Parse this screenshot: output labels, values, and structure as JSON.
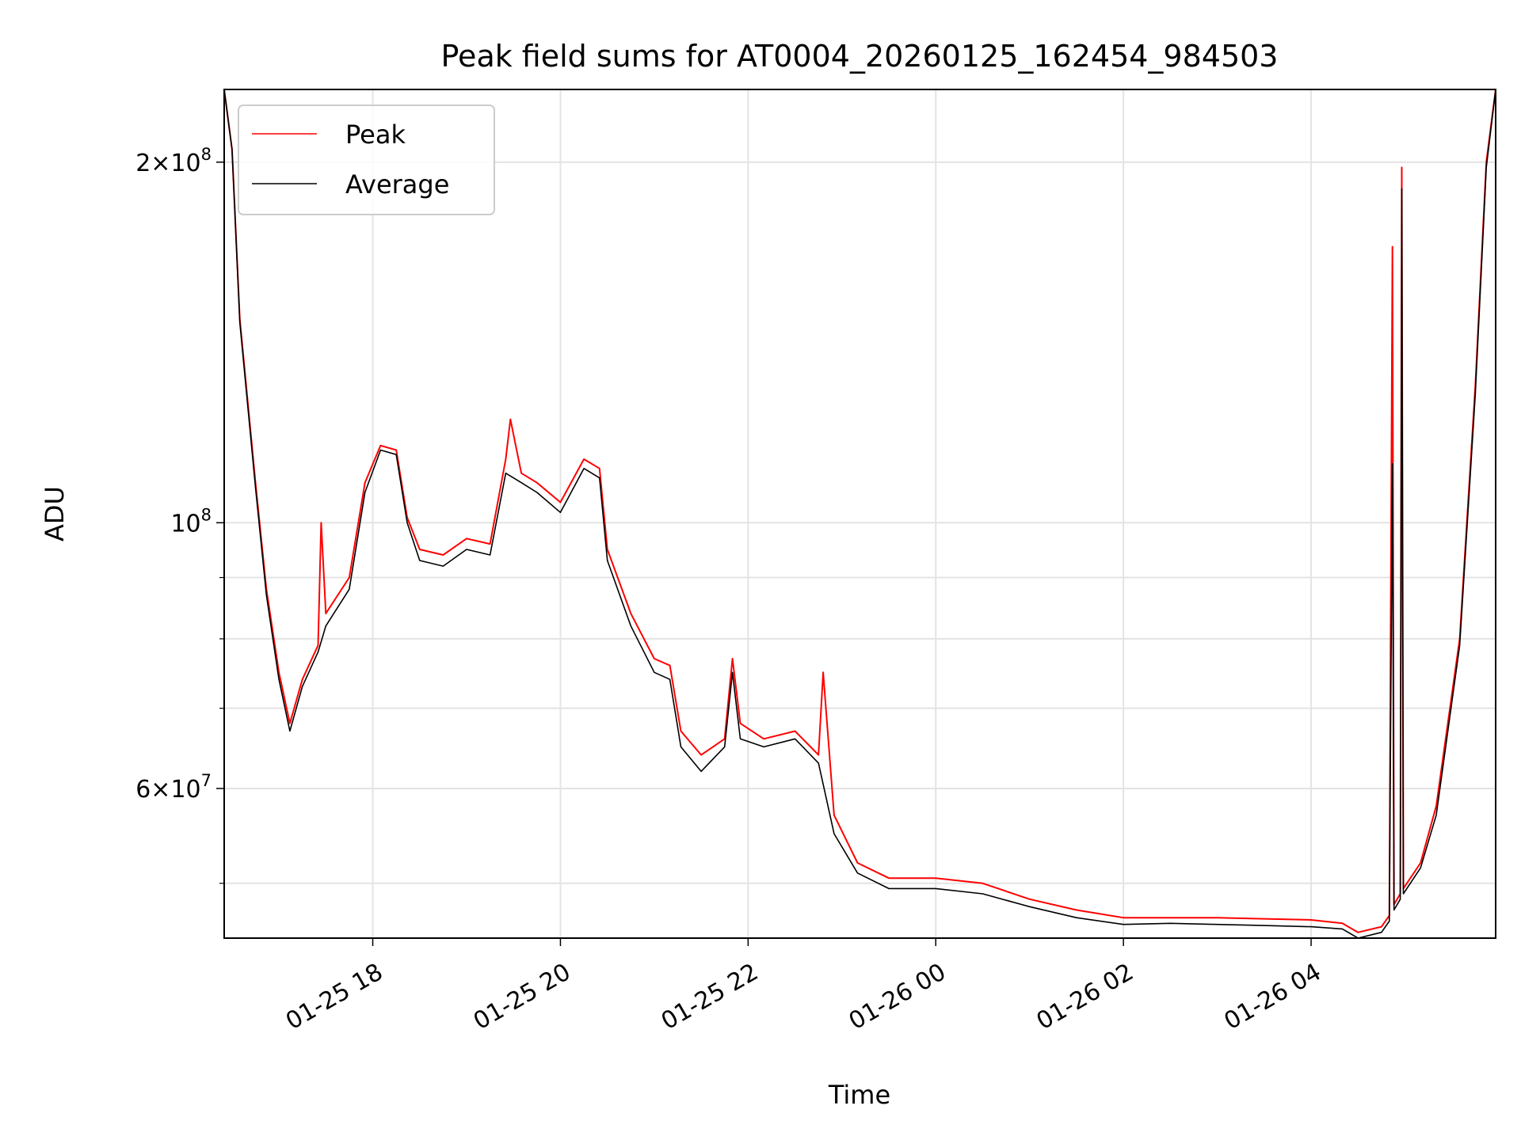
{
  "chart_data": {
    "type": "line",
    "title": "Peak field sums for AT0004_20260125_162454_984503",
    "xlabel": "Time",
    "ylabel": "ADU",
    "yscale": "log",
    "grid": true,
    "legend_position": "upper-left",
    "x_range": [
      "2026-01-25 16:25",
      "2026-01-26 05:58"
    ],
    "ylim": [
      45000000,
      230000000
    ],
    "x_ticks": [
      {
        "t": "2026-01-25 18:00",
        "label": "01-25 18"
      },
      {
        "t": "2026-01-25 20:00",
        "label": "01-25 20"
      },
      {
        "t": "2026-01-25 22:00",
        "label": "01-25 22"
      },
      {
        "t": "2026-01-26 00:00",
        "label": "01-26 00"
      },
      {
        "t": "2026-01-26 02:00",
        "label": "01-26 02"
      },
      {
        "t": "2026-01-26 04:00",
        "label": "01-26 04"
      }
    ],
    "y_major_ticks": [
      {
        "value": 60000000,
        "base": "6",
        "exp": "7",
        "times": true
      },
      {
        "value": 100000000,
        "base": "10",
        "exp": "8",
        "times": false
      },
      {
        "value": 200000000,
        "base": "2",
        "exp": "8",
        "times": true
      }
    ],
    "y_minor_ticks": [
      50000000,
      70000000,
      80000000,
      90000000
    ],
    "series": [
      {
        "name": "Peak",
        "color": "#ff0000",
        "points": [
          [
            "2026-01-25 16:25",
            230000000
          ],
          [
            "2026-01-25 16:30",
            205000000
          ],
          [
            "2026-01-25 16:35",
            148000000
          ],
          [
            "2026-01-25 16:45",
            108000000
          ],
          [
            "2026-01-25 16:52",
            88000000
          ],
          [
            "2026-01-25 17:00",
            75000000
          ],
          [
            "2026-01-25 17:07",
            68000000
          ],
          [
            "2026-01-25 17:15",
            74000000
          ],
          [
            "2026-01-25 17:25",
            79000000
          ],
          [
            "2026-01-25 17:27",
            100000000
          ],
          [
            "2026-01-25 17:30",
            84000000
          ],
          [
            "2026-01-25 17:45",
            90000000
          ],
          [
            "2026-01-25 17:55",
            108000000
          ],
          [
            "2026-01-25 18:05",
            116000000
          ],
          [
            "2026-01-25 18:15",
            115000000
          ],
          [
            "2026-01-25 18:22",
            101000000
          ],
          [
            "2026-01-25 18:30",
            95000000
          ],
          [
            "2026-01-25 18:45",
            94000000
          ],
          [
            "2026-01-25 19:00",
            97000000
          ],
          [
            "2026-01-25 19:15",
            96000000
          ],
          [
            "2026-01-25 19:25",
            113000000
          ],
          [
            "2026-01-25 19:28",
            122000000
          ],
          [
            "2026-01-25 19:35",
            110000000
          ],
          [
            "2026-01-25 19:45",
            108000000
          ],
          [
            "2026-01-25 20:00",
            104000000
          ],
          [
            "2026-01-25 20:15",
            113000000
          ],
          [
            "2026-01-25 20:25",
            111000000
          ],
          [
            "2026-01-25 20:30",
            95000000
          ],
          [
            "2026-01-25 20:45",
            84000000
          ],
          [
            "2026-01-25 21:00",
            77000000
          ],
          [
            "2026-01-25 21:10",
            76000000
          ],
          [
            "2026-01-25 21:17",
            67000000
          ],
          [
            "2026-01-25 21:30",
            64000000
          ],
          [
            "2026-01-25 21:45",
            66000000
          ],
          [
            "2026-01-25 21:50",
            77000000
          ],
          [
            "2026-01-25 21:55",
            68000000
          ],
          [
            "2026-01-25 22:10",
            66000000
          ],
          [
            "2026-01-25 22:30",
            67000000
          ],
          [
            "2026-01-25 22:45",
            64000000
          ],
          [
            "2026-01-25 22:48",
            75000000
          ],
          [
            "2026-01-25 22:55",
            57000000
          ],
          [
            "2026-01-25 23:10",
            52000000
          ],
          [
            "2026-01-25 23:30",
            50500000
          ],
          [
            "2026-01-26 00:00",
            50500000
          ],
          [
            "2026-01-26 00:30",
            50000000
          ],
          [
            "2026-01-26 01:00",
            48500000
          ],
          [
            "2026-01-26 01:30",
            47500000
          ],
          [
            "2026-01-26 02:00",
            46800000
          ],
          [
            "2026-01-26 02:30",
            46800000
          ],
          [
            "2026-01-26 03:00",
            46800000
          ],
          [
            "2026-01-26 03:30",
            46700000
          ],
          [
            "2026-01-26 04:00",
            46600000
          ],
          [
            "2026-01-26 04:20",
            46300000
          ],
          [
            "2026-01-26 04:30",
            45500000
          ],
          [
            "2026-01-26 04:45",
            46000000
          ],
          [
            "2026-01-26 04:50",
            47000000
          ],
          [
            "2026-01-26 04:52",
            170000000
          ],
          [
            "2026-01-26 04:53",
            48000000
          ],
          [
            "2026-01-26 04:57",
            49000000
          ],
          [
            "2026-01-26 04:58",
            198000000
          ],
          [
            "2026-01-26 04:59",
            49500000
          ],
          [
            "2026-01-26 05:10",
            52000000
          ],
          [
            "2026-01-26 05:20",
            58000000
          ],
          [
            "2026-01-26 05:35",
            80000000
          ],
          [
            "2026-01-26 05:45",
            130000000
          ],
          [
            "2026-01-26 05:52",
            200000000
          ],
          [
            "2026-01-26 05:58",
            230000000
          ]
        ]
      },
      {
        "name": "Average",
        "color": "#000000",
        "points": [
          [
            "2026-01-25 16:25",
            230000000
          ],
          [
            "2026-01-25 16:30",
            205000000
          ],
          [
            "2026-01-25 16:35",
            147000000
          ],
          [
            "2026-01-25 16:45",
            107000000
          ],
          [
            "2026-01-25 16:52",
            87000000
          ],
          [
            "2026-01-25 17:00",
            74000000
          ],
          [
            "2026-01-25 17:07",
            67000000
          ],
          [
            "2026-01-25 17:15",
            73000000
          ],
          [
            "2026-01-25 17:25",
            78000000
          ],
          [
            "2026-01-25 17:30",
            82000000
          ],
          [
            "2026-01-25 17:45",
            88000000
          ],
          [
            "2026-01-25 17:55",
            106000000
          ],
          [
            "2026-01-25 18:05",
            115000000
          ],
          [
            "2026-01-25 18:15",
            114000000
          ],
          [
            "2026-01-25 18:22",
            100000000
          ],
          [
            "2026-01-25 18:30",
            93000000
          ],
          [
            "2026-01-25 18:45",
            92000000
          ],
          [
            "2026-01-25 19:00",
            95000000
          ],
          [
            "2026-01-25 19:15",
            94000000
          ],
          [
            "2026-01-25 19:25",
            110000000
          ],
          [
            "2026-01-25 19:35",
            108000000
          ],
          [
            "2026-01-25 19:45",
            106000000
          ],
          [
            "2026-01-25 20:00",
            102000000
          ],
          [
            "2026-01-25 20:15",
            111000000
          ],
          [
            "2026-01-25 20:25",
            109000000
          ],
          [
            "2026-01-25 20:30",
            93000000
          ],
          [
            "2026-01-25 20:45",
            82000000
          ],
          [
            "2026-01-25 21:00",
            75000000
          ],
          [
            "2026-01-25 21:10",
            74000000
          ],
          [
            "2026-01-25 21:17",
            65000000
          ],
          [
            "2026-01-25 21:30",
            62000000
          ],
          [
            "2026-01-25 21:45",
            65000000
          ],
          [
            "2026-01-25 21:50",
            75000000
          ],
          [
            "2026-01-25 21:55",
            66000000
          ],
          [
            "2026-01-25 22:10",
            65000000
          ],
          [
            "2026-01-25 22:30",
            66000000
          ],
          [
            "2026-01-25 22:45",
            63000000
          ],
          [
            "2026-01-25 22:55",
            55000000
          ],
          [
            "2026-01-25 23:10",
            51000000
          ],
          [
            "2026-01-25 23:30",
            49500000
          ],
          [
            "2026-01-26 00:00",
            49500000
          ],
          [
            "2026-01-26 00:30",
            49000000
          ],
          [
            "2026-01-26 01:00",
            47800000
          ],
          [
            "2026-01-26 01:30",
            46800000
          ],
          [
            "2026-01-26 02:00",
            46200000
          ],
          [
            "2026-01-26 02:30",
            46300000
          ],
          [
            "2026-01-26 03:00",
            46200000
          ],
          [
            "2026-01-26 03:30",
            46100000
          ],
          [
            "2026-01-26 04:00",
            46000000
          ],
          [
            "2026-01-26 04:20",
            45800000
          ],
          [
            "2026-01-26 04:30",
            45000000
          ],
          [
            "2026-01-26 04:45",
            45500000
          ],
          [
            "2026-01-26 04:50",
            46500000
          ],
          [
            "2026-01-26 04:52",
            112000000
          ],
          [
            "2026-01-26 04:53",
            47500000
          ],
          [
            "2026-01-26 04:57",
            48500000
          ],
          [
            "2026-01-26 04:58",
            190000000
          ],
          [
            "2026-01-26 04:59",
            49000000
          ],
          [
            "2026-01-26 05:10",
            51500000
          ],
          [
            "2026-01-26 05:20",
            57000000
          ],
          [
            "2026-01-26 05:35",
            79000000
          ],
          [
            "2026-01-26 05:45",
            128000000
          ],
          [
            "2026-01-26 05:52",
            198000000
          ],
          [
            "2026-01-26 05:58",
            230000000
          ]
        ]
      }
    ]
  }
}
